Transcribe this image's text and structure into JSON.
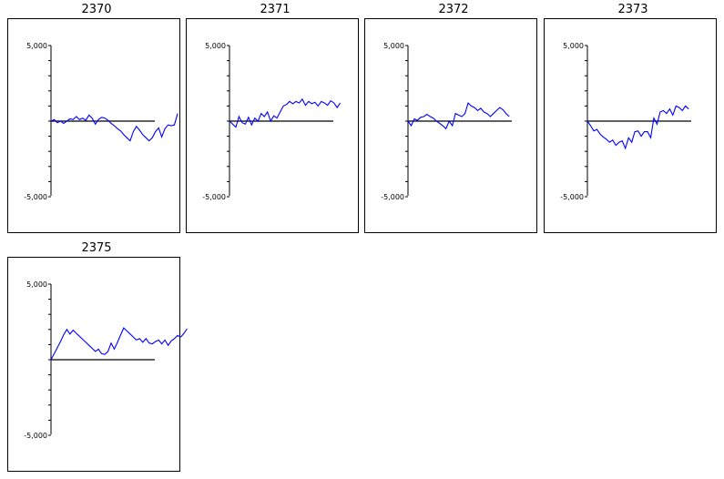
{
  "chart_data": [
    {
      "type": "line",
      "title": "2370",
      "ylim": [
        -5000,
        5000
      ],
      "yticks": [
        5000,
        -5000
      ],
      "ytick_labels": [
        "5,000",
        "-5,000"
      ],
      "series": [
        {
          "color": "#0000ff",
          "values": [
            0,
            100,
            -100,
            0,
            -150,
            0,
            150,
            100,
            300,
            100,
            200,
            50,
            400,
            200,
            -200,
            100,
            250,
            200,
            50,
            -150,
            -300,
            -500,
            -650,
            -900,
            -1100,
            -1300,
            -700,
            -350,
            -600,
            -900,
            -1100,
            -1300,
            -1100,
            -700,
            -450,
            -1050,
            -500,
            -250,
            -300,
            -250,
            500
          ]
        }
      ]
    },
    {
      "type": "line",
      "title": "2371",
      "ylim": [
        -5000,
        5000
      ],
      "yticks": [
        5000,
        -5000
      ],
      "ytick_labels": [
        "5,000",
        "-5,000"
      ],
      "series": [
        {
          "color": "#0000ff",
          "values": [
            0,
            -200,
            -400,
            300,
            -100,
            -200,
            250,
            -250,
            200,
            0,
            500,
            300,
            600,
            0,
            350,
            200,
            600,
            1000,
            1100,
            1300,
            1150,
            1300,
            1200,
            1450,
            1050,
            1300,
            1150,
            1250,
            1000,
            1300,
            1200,
            1050,
            1350,
            1200,
            900,
            1200
          ]
        }
      ]
    },
    {
      "type": "line",
      "title": "2372",
      "ylim": [
        -5000,
        5000
      ],
      "yticks": [
        5000,
        -5000
      ],
      "ytick_labels": [
        "5,000",
        "-5,000"
      ],
      "series": [
        {
          "color": "#0000ff",
          "values": [
            0,
            -300,
            150,
            50,
            250,
            300,
            450,
            300,
            200,
            0,
            -150,
            -300,
            -500,
            0,
            -300,
            500,
            400,
            300,
            500,
            1200,
            1000,
            900,
            700,
            850,
            600,
            500,
            300,
            500,
            700,
            900,
            750,
            500,
            300
          ]
        }
      ]
    },
    {
      "type": "line",
      "title": "2373",
      "ylim": [
        -5000,
        5000
      ],
      "yticks": [
        5000,
        -5000
      ],
      "ytick_labels": [
        "5,000",
        "-5,000"
      ],
      "series": [
        {
          "color": "#0000ff",
          "values": [
            0,
            -300,
            -650,
            -550,
            -850,
            -1050,
            -1200,
            -1400,
            -1250,
            -1600,
            -1400,
            -1300,
            -1800,
            -1100,
            -1400,
            -700,
            -650,
            -1000,
            -700,
            -700,
            -1100,
            200,
            -200,
            600,
            700,
            500,
            800,
            400,
            1000,
            900,
            700,
            1000,
            800
          ]
        }
      ]
    },
    {
      "type": "line",
      "title": "2375",
      "ylim": [
        -5000,
        5000
      ],
      "yticks": [
        5000,
        -5000
      ],
      "ytick_labels": [
        "5,000",
        "-5,000"
      ],
      "series": [
        {
          "color": "#0000ff",
          "values": [
            0,
            400,
            800,
            1200,
            1650,
            2000,
            1700,
            1950,
            1750,
            1550,
            1350,
            1150,
            950,
            750,
            550,
            700,
            400,
            350,
            550,
            1100,
            700,
            1150,
            1650,
            2100,
            1900,
            1700,
            1500,
            1300,
            1400,
            1150,
            1400,
            1100,
            1050,
            1200,
            1300,
            1050,
            1300,
            950,
            1250,
            1400,
            1600,
            1500,
            1750,
            2050
          ]
        }
      ]
    }
  ]
}
